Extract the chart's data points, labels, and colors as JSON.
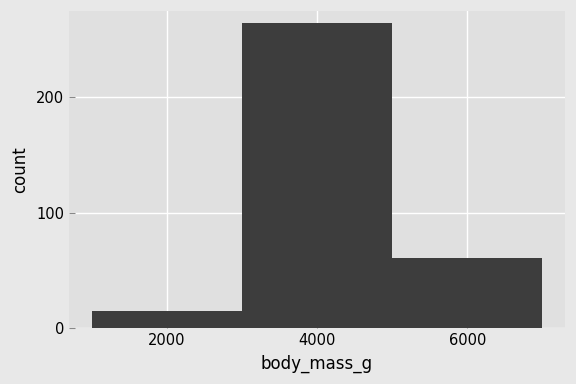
{
  "title": "",
  "xlabel": "body_mass_g",
  "ylabel": "count",
  "bar_color": "#3d3d3d",
  "outer_background": "#e8e8e8",
  "panel_background": "#e0e0e0",
  "grid_color": "#ffffff",
  "bins": [
    1000,
    3000,
    5000,
    7000
  ],
  "counts": [
    15,
    265,
    61
  ],
  "xlim": [
    700,
    7300
  ],
  "ylim": [
    0,
    275
  ],
  "yticks": [
    0,
    100,
    200
  ],
  "xticks": [
    2000,
    4000,
    6000
  ],
  "xlabel_fontsize": 12,
  "ylabel_fontsize": 12,
  "tick_fontsize": 10.5
}
